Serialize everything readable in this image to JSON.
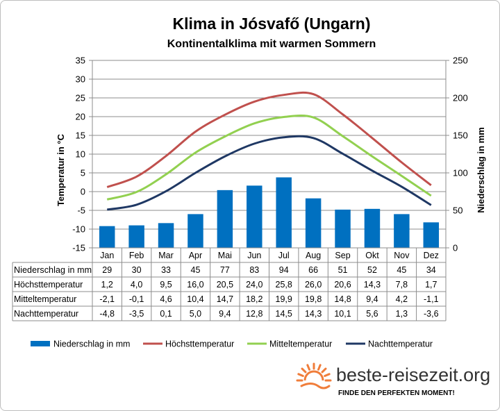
{
  "chart_data": {
    "type": "bar+line",
    "title": "Klima in Jósvafő (Ungarn)",
    "subtitle": "Kontinentalklima  mit warmen Sommern",
    "ylabel_left": "Temperatur in °C",
    "ylabel_right": "Niederschlag in mm",
    "ylim_left": [
      -15,
      35
    ],
    "yticks_left": [
      "35",
      "30",
      "25",
      "20",
      "15",
      "10",
      "5",
      "0",
      "-5",
      "-10",
      "-15"
    ],
    "ylim_right": [
      0,
      250
    ],
    "yticks_right": [
      "250",
      "200",
      "150",
      "100",
      "50",
      "0"
    ],
    "grid": "horizontal",
    "legend_position": "bottom",
    "categories": [
      "Jan",
      "Feb",
      "Mar",
      "Apr",
      "Mai",
      "Jun",
      "Jul",
      "Aug",
      "Sep",
      "Okt",
      "Nov",
      "Dez"
    ],
    "bar_series": {
      "name": "Niederschlag in mm",
      "color": "#0070c0",
      "values": [
        29,
        30,
        33,
        45,
        77,
        83,
        94,
        66,
        51,
        52,
        45,
        34
      ]
    },
    "line_series": [
      {
        "name": "Höchsttemperatur",
        "color": "#c0504d",
        "values": [
          1.2,
          4.0,
          9.5,
          16.0,
          20.5,
          24.0,
          25.8,
          26.0,
          20.6,
          14.3,
          7.8,
          1.7
        ]
      },
      {
        "name": "Mitteltemperatur",
        "color": "#92d050",
        "values": [
          -2.1,
          -0.1,
          4.6,
          10.4,
          14.7,
          18.2,
          19.9,
          19.8,
          14.8,
          9.4,
          4.2,
          -1.1
        ]
      },
      {
        "name": "Nachttemperatur",
        "color": "#1f3864",
        "values": [
          -4.8,
          -3.5,
          0.1,
          5.0,
          9.4,
          12.8,
          14.5,
          14.3,
          10.1,
          5.6,
          1.3,
          -3.6
        ]
      }
    ],
    "table": {
      "rows": [
        {
          "label": "Niederschlag in mm",
          "cells": [
            "29",
            "30",
            "33",
            "45",
            "77",
            "83",
            "94",
            "66",
            "51",
            "52",
            "45",
            "34"
          ]
        },
        {
          "label": "Höchsttemperatur",
          "cells": [
            "1,2",
            "4,0",
            "9,5",
            "16,0",
            "20,5",
            "24,0",
            "25,8",
            "26,0",
            "20,6",
            "14,3",
            "7,8",
            "1,7"
          ]
        },
        {
          "label": "Mitteltemperatur",
          "cells": [
            "-2,1",
            "-0,1",
            "4,6",
            "10,4",
            "14,7",
            "18,2",
            "19,9",
            "19,8",
            "14,8",
            "9,4",
            "4,2",
            "-1,1"
          ]
        },
        {
          "label": "Nachttemperatur",
          "cells": [
            "-4,8",
            "-3,5",
            "0,1",
            "5,0",
            "9,4",
            "12,8",
            "14,5",
            "14,3",
            "10,1",
            "5,6",
            "1,3",
            "-3,6"
          ]
        }
      ]
    }
  },
  "branding": {
    "site": "beste-reisezeit.org",
    "slogan": "FINDE DEN PERFEKTEN MOMENT!",
    "logo_icon": "sun-icon",
    "logo_color": "#f07d3a"
  }
}
